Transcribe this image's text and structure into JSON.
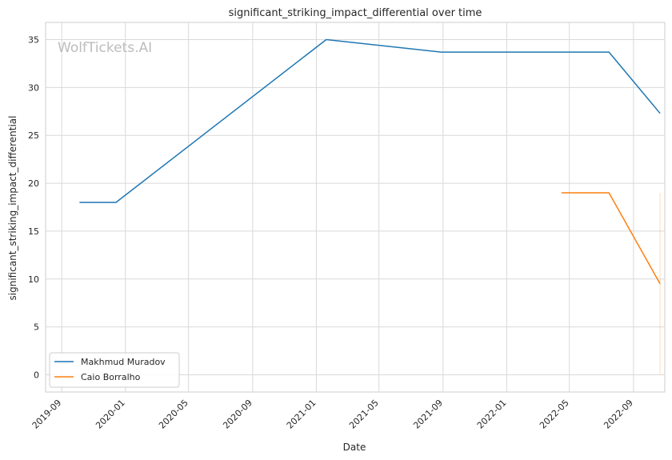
{
  "chart_data": {
    "type": "line",
    "title": "significant_striking_impact_differential over time",
    "xlabel": "Date",
    "ylabel": "significant_striking_impact_differential",
    "watermark": "WolfTickets.AI",
    "x_ticks": [
      "2019-09",
      "2020-01",
      "2020-05",
      "2020-09",
      "2021-01",
      "2021-05",
      "2021-09",
      "2022-01",
      "2022-05",
      "2022-09"
    ],
    "y_ticks": [
      "0",
      "5",
      "10",
      "15",
      "20",
      "25",
      "30",
      "35"
    ],
    "xlim": [
      "2019-08-01",
      "2022-10-31"
    ],
    "ylim": [
      -1.8,
      36.8
    ],
    "grid": true,
    "legend_position": "lower-left",
    "series": [
      {
        "name": "Makhmud Muradov",
        "color": "#1f77b4",
        "points": [
          {
            "x": "2019-10-05",
            "y": 18.0
          },
          {
            "x": "2019-12-14",
            "y": 18.0
          },
          {
            "x": "2021-01-20",
            "y": 35.0
          },
          {
            "x": "2021-08-28",
            "y": 33.7
          },
          {
            "x": "2022-07-16",
            "y": 33.7
          },
          {
            "x": "2022-10-22",
            "y": 27.3
          }
        ]
      },
      {
        "name": "Caio Borralho",
        "color": "#ff7f0e",
        "points": [
          {
            "x": "2022-04-16",
            "y": 19.0
          },
          {
            "x": "2022-07-16",
            "y": 19.0
          },
          {
            "x": "2022-10-22",
            "y": 9.5
          }
        ]
      }
    ],
    "annotation_vline": {
      "x": "2022-10-22",
      "y_from": 0,
      "y_to": 19.0,
      "color": "#ff7f0e"
    }
  }
}
